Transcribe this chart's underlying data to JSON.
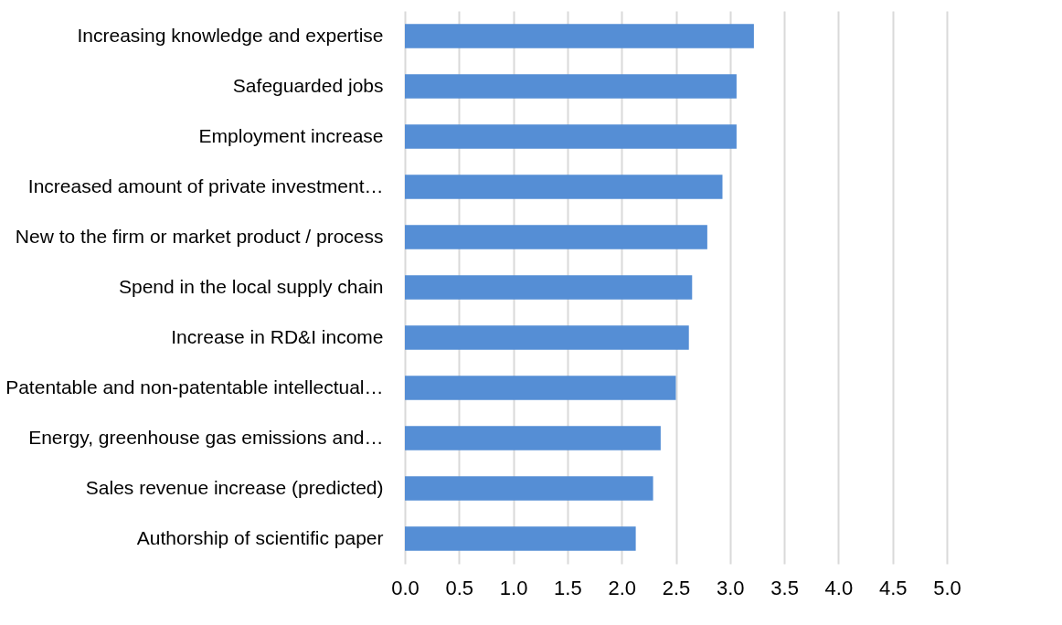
{
  "chart_data": {
    "type": "bar",
    "orientation": "horizontal",
    "categories": [
      "Increasing knowledge and expertise",
      "Safeguarded jobs",
      "Employment increase",
      "Increased amount of private investment…",
      "New to the firm or market product / process",
      "Spend in the local supply chain",
      "Increase in RD&I income",
      "Patentable and non-patentable intellectual…",
      "Energy, greenhouse gas emissions and…",
      "Sales revenue increase (predicted)",
      "Authorship of scientific paper"
    ],
    "values": [
      3.22,
      3.06,
      3.06,
      2.93,
      2.79,
      2.65,
      2.62,
      2.5,
      2.36,
      2.29,
      2.13
    ],
    "color": "#558ed5",
    "xlim": [
      0,
      5
    ],
    "xticks": [
      {
        "value": 0,
        "label": "0.0"
      },
      {
        "value": 0.5,
        "label": "0.5"
      },
      {
        "value": 1,
        "label": "1.0"
      },
      {
        "value": 1.5,
        "label": "1.5"
      },
      {
        "value": 2,
        "label": "2.0"
      },
      {
        "value": 2.5,
        "label": "2.5"
      },
      {
        "value": 3,
        "label": "3.0"
      },
      {
        "value": 3.5,
        "label": "3.5"
      },
      {
        "value": 4,
        "label": "4.0"
      },
      {
        "value": 4.5,
        "label": "4.5"
      },
      {
        "value": 5,
        "label": "5.0"
      }
    ],
    "grid": "x"
  }
}
